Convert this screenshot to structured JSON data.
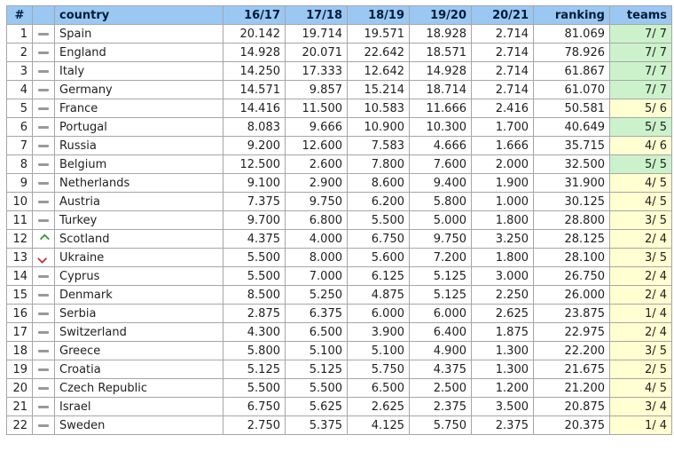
{
  "colors": {
    "header_bg": "#9ac8f3",
    "teams_green": "#ccf2cc",
    "teams_yellow": "#ffffd2",
    "up_arrow": "#2e9b2e",
    "down_arrow": "#c23333",
    "dash": "#999999",
    "border": "#a6a6a6"
  },
  "movement_icons": {
    "same": "dash-icon",
    "up": "up-chevron-icon",
    "down": "down-chevron-icon"
  },
  "table": {
    "headers": [
      "#",
      "",
      "country",
      "16/17",
      "17/18",
      "18/19",
      "19/20",
      "20/21",
      "ranking",
      "teams"
    ],
    "rows": [
      {
        "rank": "1",
        "movement": "same",
        "country": "Spain",
        "seasons": [
          "20.142",
          "19.714",
          "19.571",
          "18.928",
          "2.714"
        ],
        "ranking": "81.069",
        "teams": "7/ 7",
        "teams_color": "green"
      },
      {
        "rank": "2",
        "movement": "same",
        "country": "England",
        "seasons": [
          "14.928",
          "20.071",
          "22.642",
          "18.571",
          "2.714"
        ],
        "ranking": "78.926",
        "teams": "7/ 7",
        "teams_color": "green"
      },
      {
        "rank": "3",
        "movement": "same",
        "country": "Italy",
        "seasons": [
          "14.250",
          "17.333",
          "12.642",
          "14.928",
          "2.714"
        ],
        "ranking": "61.867",
        "teams": "7/ 7",
        "teams_color": "green"
      },
      {
        "rank": "4",
        "movement": "same",
        "country": "Germany",
        "seasons": [
          "14.571",
          "9.857",
          "15.214",
          "18.714",
          "2.714"
        ],
        "ranking": "61.070",
        "teams": "7/ 7",
        "teams_color": "green"
      },
      {
        "rank": "5",
        "movement": "same",
        "country": "France",
        "seasons": [
          "14.416",
          "11.500",
          "10.583",
          "11.666",
          "2.416"
        ],
        "ranking": "50.581",
        "teams": "5/ 6",
        "teams_color": "yellow"
      },
      {
        "rank": "6",
        "movement": "same",
        "country": "Portugal",
        "seasons": [
          "8.083",
          "9.666",
          "10.900",
          "10.300",
          "1.700"
        ],
        "ranking": "40.649",
        "teams": "5/ 5",
        "teams_color": "green"
      },
      {
        "rank": "7",
        "movement": "same",
        "country": "Russia",
        "seasons": [
          "9.200",
          "12.600",
          "7.583",
          "4.666",
          "1.666"
        ],
        "ranking": "35.715",
        "teams": "4/ 6",
        "teams_color": "yellow"
      },
      {
        "rank": "8",
        "movement": "same",
        "country": "Belgium",
        "seasons": [
          "12.500",
          "2.600",
          "7.800",
          "7.600",
          "2.000"
        ],
        "ranking": "32.500",
        "teams": "5/ 5",
        "teams_color": "green"
      },
      {
        "rank": "9",
        "movement": "same",
        "country": "Netherlands",
        "seasons": [
          "9.100",
          "2.900",
          "8.600",
          "9.400",
          "1.900"
        ],
        "ranking": "31.900",
        "teams": "4/ 5",
        "teams_color": "yellow"
      },
      {
        "rank": "10",
        "movement": "same",
        "country": "Austria",
        "seasons": [
          "7.375",
          "9.750",
          "6.200",
          "5.800",
          "1.000"
        ],
        "ranking": "30.125",
        "teams": "4/ 5",
        "teams_color": "yellow"
      },
      {
        "rank": "11",
        "movement": "same",
        "country": "Turkey",
        "seasons": [
          "9.700",
          "6.800",
          "5.500",
          "5.000",
          "1.800"
        ],
        "ranking": "28.800",
        "teams": "3/ 5",
        "teams_color": "yellow"
      },
      {
        "rank": "12",
        "movement": "up",
        "country": "Scotland",
        "seasons": [
          "4.375",
          "4.000",
          "6.750",
          "9.750",
          "3.250"
        ],
        "ranking": "28.125",
        "teams": "2/ 4",
        "teams_color": "yellow"
      },
      {
        "rank": "13",
        "movement": "down",
        "country": "Ukraine",
        "seasons": [
          "5.500",
          "8.000",
          "5.600",
          "7.200",
          "1.800"
        ],
        "ranking": "28.100",
        "teams": "3/ 5",
        "teams_color": "yellow"
      },
      {
        "rank": "14",
        "movement": "same",
        "country": "Cyprus",
        "seasons": [
          "5.500",
          "7.000",
          "6.125",
          "5.125",
          "3.000"
        ],
        "ranking": "26.750",
        "teams": "2/ 4",
        "teams_color": "yellow"
      },
      {
        "rank": "15",
        "movement": "same",
        "country": "Denmark",
        "seasons": [
          "8.500",
          "5.250",
          "4.875",
          "5.125",
          "2.250"
        ],
        "ranking": "26.000",
        "teams": "2/ 4",
        "teams_color": "yellow"
      },
      {
        "rank": "16",
        "movement": "same",
        "country": "Serbia",
        "seasons": [
          "2.875",
          "6.375",
          "6.000",
          "6.000",
          "2.625"
        ],
        "ranking": "23.875",
        "teams": "1/ 4",
        "teams_color": "yellow"
      },
      {
        "rank": "17",
        "movement": "same",
        "country": "Switzerland",
        "seasons": [
          "4.300",
          "6.500",
          "3.900",
          "6.400",
          "1.875"
        ],
        "ranking": "22.975",
        "teams": "2/ 4",
        "teams_color": "yellow"
      },
      {
        "rank": "18",
        "movement": "same",
        "country": "Greece",
        "seasons": [
          "5.800",
          "5.100",
          "5.100",
          "4.900",
          "1.300"
        ],
        "ranking": "22.200",
        "teams": "3/ 5",
        "teams_color": "yellow"
      },
      {
        "rank": "19",
        "movement": "same",
        "country": "Croatia",
        "seasons": [
          "5.125",
          "5.125",
          "5.750",
          "4.375",
          "1.300"
        ],
        "ranking": "21.675",
        "teams": "2/ 5",
        "teams_color": "yellow"
      },
      {
        "rank": "20",
        "movement": "same",
        "country": "Czech Republic",
        "seasons": [
          "5.500",
          "5.500",
          "6.500",
          "2.500",
          "1.200"
        ],
        "ranking": "21.200",
        "teams": "4/ 5",
        "teams_color": "yellow"
      },
      {
        "rank": "21",
        "movement": "same",
        "country": "Israel",
        "seasons": [
          "6.750",
          "5.625",
          "2.625",
          "2.375",
          "3.500"
        ],
        "ranking": "20.875",
        "teams": "3/ 4",
        "teams_color": "yellow"
      },
      {
        "rank": "22",
        "movement": "same",
        "country": "Sweden",
        "seasons": [
          "2.750",
          "5.375",
          "4.125",
          "5.750",
          "2.375"
        ],
        "ranking": "20.375",
        "teams": "1/ 4",
        "teams_color": "yellow"
      }
    ]
  }
}
